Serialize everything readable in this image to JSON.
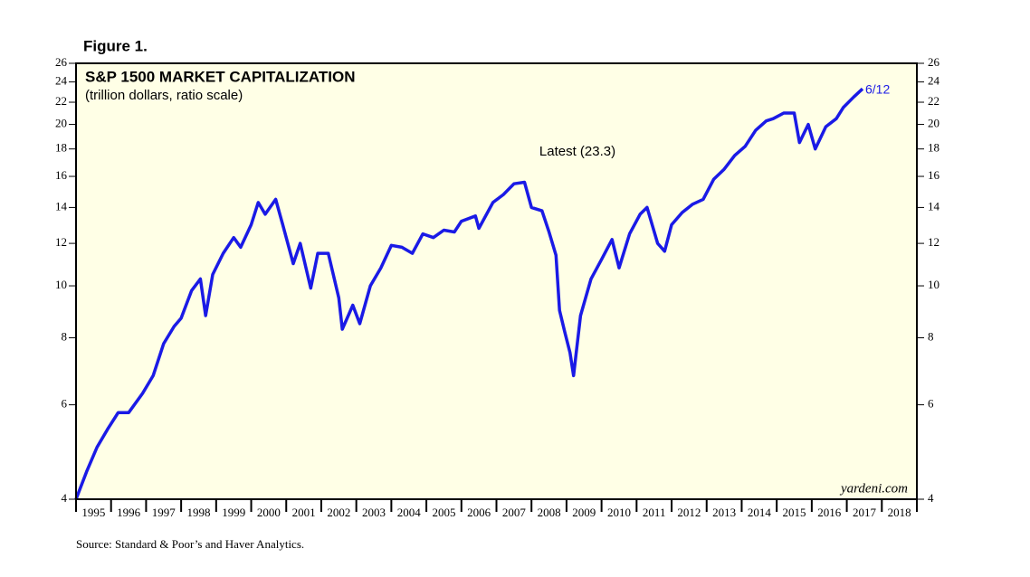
{
  "chart_data": {
    "type": "line",
    "figure_label": "Figure 1.",
    "title": "S&P 1500 MARKET CAPITALIZATION",
    "subtitle": "(trillion dollars, ratio scale)",
    "annotations": [
      "Latest (23.3)",
      "6/12"
    ],
    "watermark": "yardeni.com",
    "source": "Source: Standard & Poor’s and Haver Analytics.",
    "log_scale": true,
    "xlim": [
      1995,
      2019
    ],
    "xticks": [
      {
        "value": 1995,
        "label": "1995"
      },
      {
        "value": 1996,
        "label": "1996"
      },
      {
        "value": 1997,
        "label": "1997"
      },
      {
        "value": 1998,
        "label": "1998"
      },
      {
        "value": 1999,
        "label": "1999"
      },
      {
        "value": 2000,
        "label": "2000"
      },
      {
        "value": 2001,
        "label": "2001"
      },
      {
        "value": 2002,
        "label": "2002"
      },
      {
        "value": 2003,
        "label": "2003"
      },
      {
        "value": 2004,
        "label": "2004"
      },
      {
        "value": 2005,
        "label": "2005"
      },
      {
        "value": 2006,
        "label": "2006"
      },
      {
        "value": 2007,
        "label": "2007"
      },
      {
        "value": 2008,
        "label": "2008"
      },
      {
        "value": 2009,
        "label": "2009"
      },
      {
        "value": 2010,
        "label": "2010"
      },
      {
        "value": 2011,
        "label": "2011"
      },
      {
        "value": 2012,
        "label": "2012"
      },
      {
        "value": 2013,
        "label": "2013"
      },
      {
        "value": 2014,
        "label": "2014"
      },
      {
        "value": 2015,
        "label": "2015"
      },
      {
        "value": 2016,
        "label": "2016"
      },
      {
        "value": 2017,
        "label": "2017"
      },
      {
        "value": 2018,
        "label": "2018"
      }
    ],
    "ylim": [
      4,
      26
    ],
    "yticks": [
      4,
      6,
      8,
      10,
      12,
      14,
      16,
      18,
      20,
      22,
      24,
      26
    ],
    "series": [
      {
        "name": "S&P 1500 Market Capitalization",
        "color": "#1a1ae6",
        "x": [
          1995.0,
          1995.3,
          1995.6,
          1995.9,
          1996.2,
          1996.5,
          1996.9,
          1997.2,
          1997.5,
          1997.8,
          1998.0,
          1998.3,
          1998.55,
          1998.7,
          1998.9,
          1999.2,
          1999.5,
          1999.7,
          2000.0,
          2000.2,
          2000.4,
          2000.7,
          2000.9,
          2001.2,
          2001.4,
          2001.7,
          2001.9,
          2002.2,
          2002.5,
          2002.6,
          2002.9,
          2003.1,
          2003.4,
          2003.7,
          2004.0,
          2004.3,
          2004.6,
          2004.9,
          2005.2,
          2005.5,
          2005.8,
          2006.0,
          2006.4,
          2006.5,
          2006.9,
          2007.2,
          2007.5,
          2007.8,
          2008.0,
          2008.3,
          2008.5,
          2008.7,
          2008.8,
          2008.95,
          2009.1,
          2009.2,
          2009.4,
          2009.7,
          2010.0,
          2010.3,
          2010.5,
          2010.8,
          2011.1,
          2011.3,
          2011.6,
          2011.8,
          2012.0,
          2012.3,
          2012.6,
          2012.9,
          2013.2,
          2013.5,
          2013.8,
          2014.1,
          2014.4,
          2014.7,
          2014.9,
          2015.2,
          2015.5,
          2015.65,
          2015.9,
          2016.1,
          2016.4,
          2016.7,
          2016.9,
          2017.2,
          2017.45
        ],
        "values": [
          4.0,
          4.5,
          5.0,
          5.4,
          5.8,
          5.8,
          6.3,
          6.8,
          7.8,
          8.4,
          8.7,
          9.8,
          10.3,
          8.8,
          10.5,
          11.5,
          12.3,
          11.8,
          13.0,
          14.3,
          13.6,
          14.5,
          13.0,
          11.0,
          12.0,
          9.9,
          11.5,
          11.5,
          9.5,
          8.3,
          9.2,
          8.5,
          10.0,
          10.8,
          11.9,
          11.8,
          11.5,
          12.5,
          12.3,
          12.7,
          12.6,
          13.2,
          13.5,
          12.8,
          14.3,
          14.8,
          15.5,
          15.6,
          14.0,
          13.8,
          12.6,
          11.4,
          9.0,
          8.2,
          7.5,
          6.8,
          8.8,
          10.3,
          11.2,
          12.2,
          10.8,
          12.5,
          13.6,
          14.0,
          12.0,
          11.6,
          13.0,
          13.7,
          14.2,
          14.5,
          15.8,
          16.5,
          17.5,
          18.2,
          19.5,
          20.3,
          20.5,
          21.0,
          21.0,
          18.5,
          20.0,
          18.0,
          19.8,
          20.5,
          21.5,
          22.5,
          23.3
        ]
      }
    ]
  }
}
